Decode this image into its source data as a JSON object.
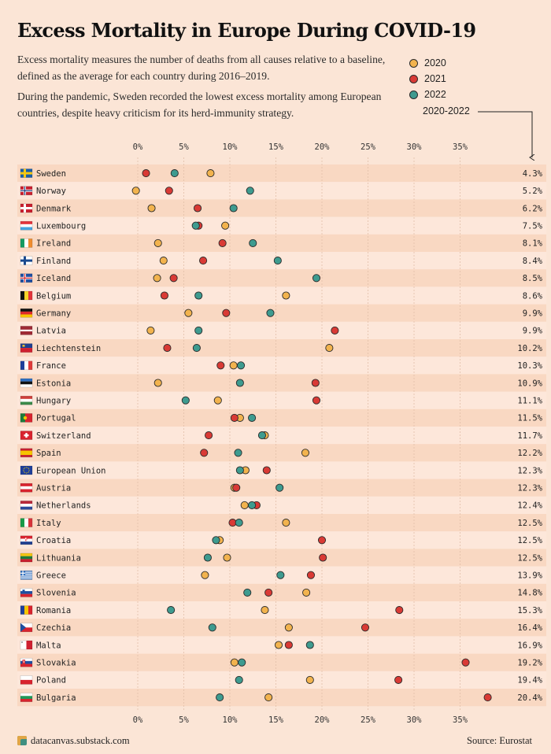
{
  "title": "Excess Mortality in Europe During COVID-19",
  "paragraph1": "Excess mortality measures the number of deaths from all causes relative to a baseline, defined as the average for each country during 2016–2019.",
  "paragraph2": "During the pandemic, Sweden recorded the lowest excess mortality among European countries, despite heavy criticism for its herd-immunity strategy.",
  "legend": {
    "items": [
      {
        "label": "2020",
        "color": "#f2b34e"
      },
      {
        "label": "2021",
        "color": "#d93a35"
      },
      {
        "label": "2022",
        "color": "#3e9b8f"
      }
    ],
    "total_label": "2020-2022"
  },
  "footer": {
    "source_site": "datacanvas.substack.com",
    "source": "Source: Eurostat"
  },
  "chart_data": {
    "type": "scatter",
    "xlim": [
      0,
      35
    ],
    "x_ticks": [
      0,
      5,
      10,
      15,
      20,
      25,
      30,
      35
    ],
    "tick_labels": [
      "0%",
      "5%",
      "10%",
      "15%",
      "20%",
      "25%",
      "30%",
      "35%"
    ],
    "grid": true,
    "series_names": [
      "2020",
      "2021",
      "2022"
    ],
    "series_colors": [
      "#f2b34e",
      "#d93a35",
      "#3e9b8f"
    ],
    "rows": [
      {
        "country": "Sweden",
        "flag": "sweden",
        "v2020": 7.9,
        "v2021": 0.9,
        "v2022": 4.0,
        "total": "4.3%"
      },
      {
        "country": "Norway",
        "flag": "norway",
        "v2020": -0.2,
        "v2021": 3.4,
        "v2022": 12.2,
        "total": "5.2%"
      },
      {
        "country": "Denmark",
        "flag": "denmark",
        "v2020": 1.5,
        "v2021": 6.5,
        "v2022": 10.4,
        "total": "6.2%"
      },
      {
        "country": "Luxembourg",
        "flag": "luxembourg",
        "v2020": 9.5,
        "v2021": 6.6,
        "v2022": 6.3,
        "total": "7.5%"
      },
      {
        "country": "Ireland",
        "flag": "ireland",
        "v2020": 2.2,
        "v2021": 9.2,
        "v2022": 12.5,
        "total": "8.1%"
      },
      {
        "country": "Finland",
        "flag": "finland",
        "v2020": 2.8,
        "v2021": 7.1,
        "v2022": 15.2,
        "total": "8.4%"
      },
      {
        "country": "Iceland",
        "flag": "iceland",
        "v2020": 2.1,
        "v2021": 3.9,
        "v2022": 19.4,
        "total": "8.5%"
      },
      {
        "country": "Belgium",
        "flag": "belgium",
        "v2020": 16.1,
        "v2021": 2.9,
        "v2022": 6.6,
        "total": "8.6%"
      },
      {
        "country": "Germany",
        "flag": "germany",
        "v2020": 5.5,
        "v2021": 9.6,
        "v2022": 14.4,
        "total": "9.9%"
      },
      {
        "country": "Latvia",
        "flag": "latvia",
        "v2020": 1.4,
        "v2021": 21.4,
        "v2022": 6.6,
        "total": "9.9%"
      },
      {
        "country": "Liechtenstein",
        "flag": "liechtenstein",
        "v2020": 20.8,
        "v2021": 3.2,
        "v2022": 6.4,
        "total": "10.2%"
      },
      {
        "country": "France",
        "flag": "france",
        "v2020": 10.4,
        "v2021": 9.0,
        "v2022": 11.2,
        "total": "10.3%"
      },
      {
        "country": "Estonia",
        "flag": "estonia",
        "v2020": 2.2,
        "v2021": 19.3,
        "v2022": 11.1,
        "total": "10.9%"
      },
      {
        "country": "Hungary",
        "flag": "hungary",
        "v2020": 8.7,
        "v2021": 19.4,
        "v2022": 5.2,
        "total": "11.1%"
      },
      {
        "country": "Portugal",
        "flag": "portugal",
        "v2020": 11.1,
        "v2021": 10.5,
        "v2022": 12.4,
        "total": "11.5%"
      },
      {
        "country": "Switzerland",
        "flag": "switzerland",
        "v2020": 13.8,
        "v2021": 7.7,
        "v2022": 13.5,
        "total": "11.7%"
      },
      {
        "country": "Spain",
        "flag": "spain",
        "v2020": 18.2,
        "v2021": 7.2,
        "v2022": 10.9,
        "total": "12.2%"
      },
      {
        "country": "European Union",
        "flag": "eu",
        "v2020": 11.7,
        "v2021": 14.0,
        "v2022": 11.1,
        "total": "12.3%"
      },
      {
        "country": "Austria",
        "flag": "austria",
        "v2020": 10.5,
        "v2021": 10.7,
        "v2022": 15.4,
        "total": "12.3%"
      },
      {
        "country": "Netherlands",
        "flag": "netherlands",
        "v2020": 11.6,
        "v2021": 12.9,
        "v2022": 12.4,
        "total": "12.4%"
      },
      {
        "country": "Italy",
        "flag": "italy",
        "v2020": 16.1,
        "v2021": 10.3,
        "v2022": 11.0,
        "total": "12.5%"
      },
      {
        "country": "Croatia",
        "flag": "croatia",
        "v2020": 8.9,
        "v2021": 20.0,
        "v2022": 8.5,
        "total": "12.5%"
      },
      {
        "country": "Lithuania",
        "flag": "lithuania",
        "v2020": 9.7,
        "v2021": 20.1,
        "v2022": 7.6,
        "total": "12.5%"
      },
      {
        "country": "Greece",
        "flag": "greece",
        "v2020": 7.3,
        "v2021": 18.8,
        "v2022": 15.5,
        "total": "13.9%"
      },
      {
        "country": "Slovenia",
        "flag": "slovenia",
        "v2020": 18.3,
        "v2021": 14.2,
        "v2022": 11.9,
        "total": "14.8%"
      },
      {
        "country": "Romania",
        "flag": "romania",
        "v2020": 13.8,
        "v2021": 28.4,
        "v2022": 3.6,
        "total": "15.3%"
      },
      {
        "country": "Czechia",
        "flag": "czechia",
        "v2020": 16.4,
        "v2021": 24.7,
        "v2022": 8.1,
        "total": "16.4%"
      },
      {
        "country": "Malta",
        "flag": "malta",
        "v2020": 15.3,
        "v2021": 16.4,
        "v2022": 18.7,
        "total": "16.9%"
      },
      {
        "country": "Slovakia",
        "flag": "slovakia",
        "v2020": 10.5,
        "v2021": 35.6,
        "v2022": 11.3,
        "total": "19.2%"
      },
      {
        "country": "Poland",
        "flag": "poland",
        "v2020": 18.7,
        "v2021": 28.3,
        "v2022": 11.0,
        "total": "19.4%"
      },
      {
        "country": "Bulgaria",
        "flag": "bulgaria",
        "v2020": 14.2,
        "v2021": 38.0,
        "v2022": 8.9,
        "total": "20.4%"
      }
    ]
  }
}
